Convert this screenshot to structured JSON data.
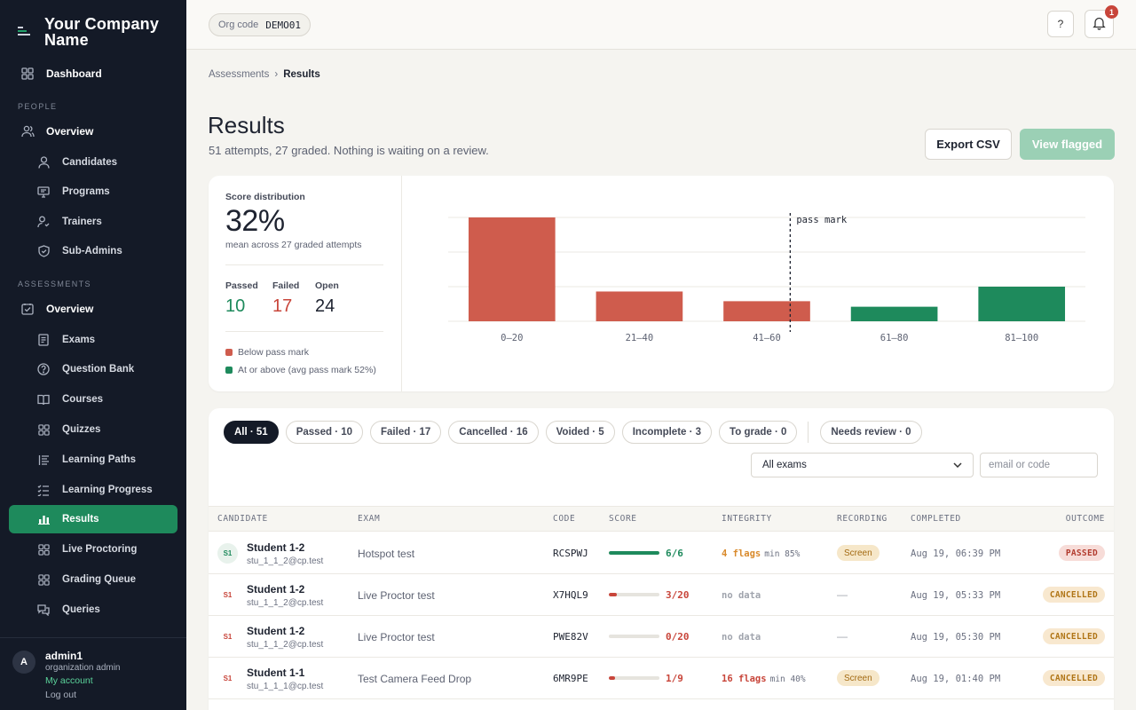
{
  "brand": {
    "name_line1": "Your Company",
    "name_line2": "Name"
  },
  "sidebar": {
    "dashboard": "Dashboard",
    "people_label": "PEOPLE",
    "people_overview": "Overview",
    "people_items": [
      "Candidates",
      "Programs",
      "Trainers",
      "Sub-Admins"
    ],
    "assessments_label": "ASSESSMENTS",
    "assessments_overview": "Overview",
    "assessment_items": [
      "Exams",
      "Question Bank",
      "Courses",
      "Quizzes",
      "Learning Paths",
      "Learning Progress",
      "Results",
      "Live Proctoring",
      "Grading Queue",
      "Queries"
    ],
    "active_item": "Results"
  },
  "user": {
    "initial": "A",
    "name": "admin1",
    "role": "organization admin",
    "account_link": "My account",
    "logout": "Log out"
  },
  "topbar": {
    "org_label": "Org code",
    "org_code": "DEMO01",
    "help": "?",
    "notifications_count": "1"
  },
  "breadcrumb": {
    "parent": "Assessments",
    "separator": "›",
    "current": "Results"
  },
  "page": {
    "title": "Results",
    "subtitle": "51 attempts, 27 graded. Nothing is waiting on a review.",
    "export_label": "Export CSV",
    "flagged_label": "View flagged"
  },
  "stats": {
    "label": "Score distribution",
    "value": "32%",
    "description": "mean across 27 graded attempts",
    "passed_label": "Passed",
    "passed_value": "10",
    "failed_label": "Failed",
    "failed_value": "17",
    "open_label": "Open",
    "open_value": "24",
    "legend_below": "Below pass mark",
    "legend_above": "At or above (avg pass mark 52%)"
  },
  "colors": {
    "fail": "#cf5c4d",
    "pass": "#1e8a5c",
    "warn": "#d98a2b"
  },
  "chart_data": {
    "type": "bar",
    "categories": [
      "0–20",
      "21–40",
      "41–60",
      "61–80",
      "81–100"
    ],
    "values": [
      15,
      4.3,
      2.9,
      2.1,
      5
    ],
    "classes": [
      "below",
      "below",
      "below",
      "above",
      "above"
    ],
    "ylim": [
      0,
      15
    ],
    "grid": true,
    "annotation": {
      "label": "pass mark",
      "value": 52
    }
  },
  "filters": {
    "chips": [
      "All · 51",
      "Passed · 10",
      "Failed · 17",
      "Cancelled · 16",
      "Voided · 5",
      "Incomplete · 3",
      "To grade · 0"
    ],
    "review_chip": "Needs review · 0",
    "exam_select": "All exams",
    "search_placeholder": "email or code"
  },
  "table": {
    "headers": [
      "CANDIDATE",
      "EXAM",
      "CODE",
      "SCORE",
      "INTEGRITY",
      "RECORDING",
      "COMPLETED",
      "OUTCOME"
    ],
    "rows": [
      {
        "initials": "S1",
        "name": "Student 1-2",
        "email": "stu_1_1_2@cp.test",
        "exam": "Hotspot test",
        "code": "RCSPWJ",
        "score": "6/6",
        "score_pct": 100,
        "score_color": "#1e8a5c",
        "flags": "4 flags",
        "min": "min 85%",
        "flag_color": "#d98a2b",
        "recording": "Screen",
        "completed": "Aug 19, 06:39 PM",
        "outcome": "PASSED",
        "outcome_bg": "#f7dcd8",
        "outcome_fg": "#b23b2e",
        "badge_bg": "#e8f2ec",
        "badge_fg": "#1e8a5c"
      },
      {
        "initials": "S1",
        "name": "Student 1-2",
        "email": "stu_1_1_2@cp.test",
        "exam": "Live Proctor test",
        "code": "X7HQL9",
        "score": "3/20",
        "score_pct": 15,
        "score_color": "#c8453a",
        "flags": "no data",
        "min": "",
        "flag_color": "#a0a4ad",
        "recording": "—",
        "completed": "Aug 19, 05:33 PM",
        "outcome": "CANCELLED",
        "outcome_bg": "#f8e8cf",
        "outcome_fg": "#b07516",
        "badge_bg": "#ffffff",
        "badge_fg": "#c8453a"
      },
      {
        "initials": "S1",
        "name": "Student 1-2",
        "email": "stu_1_1_2@cp.test",
        "exam": "Live Proctor test",
        "code": "PWE82V",
        "score": "0/20",
        "score_pct": 0,
        "score_color": "#c8453a",
        "flags": "no data",
        "min": "",
        "flag_color": "#a0a4ad",
        "recording": "—",
        "completed": "Aug 19, 05:30 PM",
        "outcome": "CANCELLED",
        "outcome_bg": "#f8e8cf",
        "outcome_fg": "#b07516",
        "badge_bg": "#ffffff",
        "badge_fg": "#c8453a"
      },
      {
        "initials": "S1",
        "name": "Student 1-1",
        "email": "stu_1_1_1@cp.test",
        "exam": "Test Camera Feed Drop",
        "code": "6MR9PE",
        "score": "1/9",
        "score_pct": 11,
        "score_color": "#c8453a",
        "flags": "16 flags",
        "min": "min 40%",
        "flag_color": "#c8453a",
        "recording": "Screen",
        "completed": "Aug 19, 01:40 PM",
        "outcome": "CANCELLED",
        "outcome_bg": "#f8e8cf",
        "outcome_fg": "#b07516",
        "badge_bg": "#ffffff",
        "badge_fg": "#c8453a"
      }
    ]
  }
}
